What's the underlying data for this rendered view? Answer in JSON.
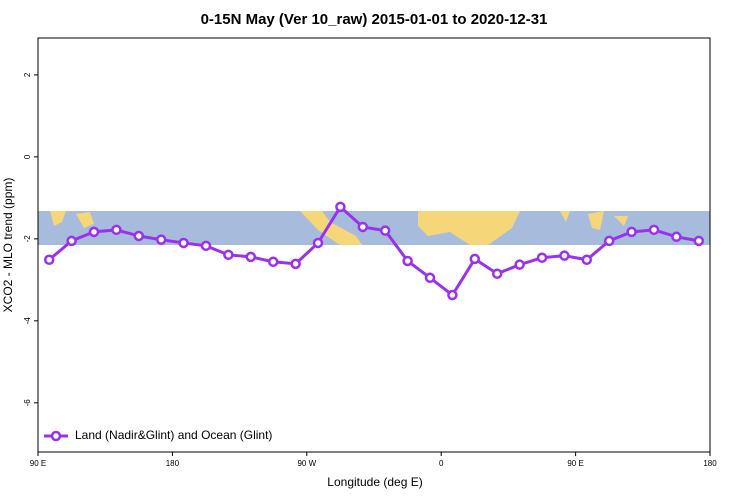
{
  "chart_data": {
    "type": "line",
    "title": "0-15N May (Ver 10_raw)   2015-01-01 to 2020-12-31",
    "x_label": "Longitude (deg E)",
    "y_label": "XCO2 - MLO trend (ppm)",
    "x": [
      97.5,
      112.5,
      127.5,
      142.5,
      157.5,
      172.5,
      187.5,
      202.5,
      217.5,
      232.5,
      247.5,
      262.5,
      277.5,
      292.5,
      307.5,
      322.5,
      337.5,
      352.5,
      367.5,
      382.5,
      397.5,
      412.5,
      427.5,
      442.5,
      457.5,
      472.5,
      487.5,
      502.5,
      517.5,
      532.5
    ],
    "series": [
      {
        "name": "Land (Nadir&Glint) and Ocean (Glint)",
        "color": "#9b30f0",
        "values": [
          -2.51,
          -2.05,
          -1.83,
          -1.78,
          -1.93,
          -2.02,
          -2.1,
          -2.17,
          -2.39,
          -2.44,
          -2.56,
          -2.61,
          -2.1,
          -1.22,
          -1.71,
          -1.8,
          -2.54,
          -2.95,
          -3.37,
          -2.49,
          -2.85,
          -2.63,
          -2.46,
          -2.41,
          -2.51,
          -2.05,
          -1.83,
          -1.78,
          -1.95,
          -2.05
        ]
      }
    ],
    "xlim": [
      90,
      540
    ],
    "xticks": [
      {
        "value": 90,
        "label": "90 E"
      },
      180,
      {
        "value": 270,
        "label": "90 W"
      },
      {
        "value": 360,
        "label": "0"
      },
      {
        "value": 450,
        "label": "90 E"
      },
      180.0001
    ],
    "ylim": [
      -7.2,
      2.9
    ],
    "yticks": [
      2,
      0,
      -2,
      -4,
      -6
    ],
    "legend": "bottom-left"
  }
}
